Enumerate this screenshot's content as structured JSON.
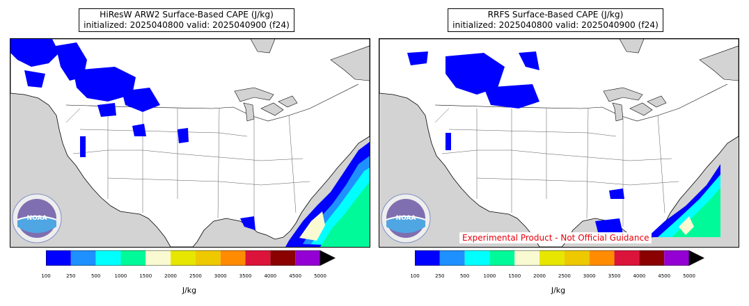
{
  "panels": [
    {
      "title_line1": "HiResW ARW2 Surface-Based CAPE (J/kg)",
      "title_line2": "initialized: 2025040800 valid: 2025040900 (f24)"
    },
    {
      "title_line1": "RRFS Surface-Based CAPE (J/kg)",
      "title_line2": "initialized: 2025040800 valid: 2025040900 (f24)"
    }
  ],
  "colorbar": {
    "ticks": [
      "100",
      "250",
      "500",
      "1000",
      "1500",
      "2000",
      "2500",
      "3000",
      "3500",
      "4000",
      "4500",
      "5000"
    ],
    "colors": [
      "#0000ff",
      "#1e90ff",
      "#00ffff",
      "#00fa9a",
      "#fafad2",
      "#e6e600",
      "#eec900",
      "#ff8c00",
      "#dc143c",
      "#8b0000",
      "#9400d3"
    ],
    "extend_color": "#000000",
    "unit_label": "J/kg"
  },
  "logo": {
    "text": "NOAA",
    "icon": "noaa-logo-icon"
  },
  "disclaimer": "Experimental Product - Not Official Guidance",
  "map_colors": {
    "land": "#ffffff",
    "water": "#d3d3d3",
    "borders": "#000000"
  }
}
